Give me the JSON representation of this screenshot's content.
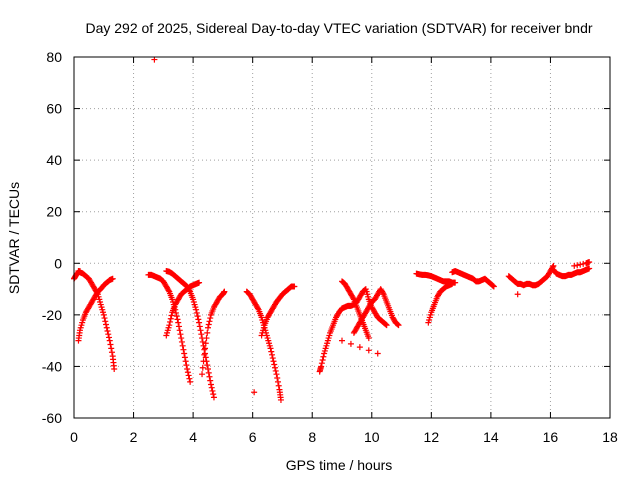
{
  "chart_data": {
    "type": "scatter",
    "title": "Day 292 of 2025, Sidereal Day-to-day VTEC variation (SDTVAR) for receiver bndr",
    "xlabel": "GPS time / hours",
    "ylabel": "SDTVAR / TECUs",
    "xlim": [
      0,
      18
    ],
    "ylim": [
      -60,
      80
    ],
    "xticks": [
      0,
      2,
      4,
      6,
      8,
      10,
      12,
      14,
      16,
      18
    ],
    "yticks": [
      -60,
      -40,
      -20,
      0,
      20,
      40,
      60,
      80
    ],
    "grid": true,
    "legend": "none",
    "marker": "+",
    "color": "#ff0000",
    "series": [
      {
        "name": "track-1",
        "x": [
          0.0,
          0.05,
          0.1,
          0.2
        ],
        "y": [
          -6,
          -5,
          -4,
          -3
        ]
      },
      {
        "name": "track-2",
        "x": [
          0.15,
          0.2,
          0.3,
          0.4,
          0.5,
          0.6,
          0.7,
          0.8,
          0.9,
          1.0,
          1.1,
          1.2,
          1.3,
          1.35
        ],
        "y": [
          -3,
          -3.5,
          -4,
          -5,
          -6,
          -8,
          -10,
          -12,
          -16,
          -20,
          -25,
          -30,
          -36,
          -41
        ]
      },
      {
        "name": "track-3",
        "x": [
          0.15,
          0.2,
          0.3,
          0.4,
          0.5,
          0.6,
          0.7,
          0.8,
          0.9,
          1.0,
          1.1,
          1.2,
          1.3
        ],
        "y": [
          -30,
          -26,
          -22,
          -19,
          -17,
          -15,
          -13,
          -11,
          -10,
          -8.5,
          -7.5,
          -6.5,
          -6
        ]
      },
      {
        "name": "isolated-1",
        "x": [
          2.7
        ],
        "y": [
          79
        ]
      },
      {
        "name": "track-4",
        "x": [
          2.5,
          2.6,
          2.7,
          2.8,
          2.9,
          3.0,
          3.1,
          3.2,
          3.3,
          3.4,
          3.5,
          3.6,
          3.7,
          3.8,
          3.9
        ],
        "y": [
          -4.5,
          -4.5,
          -5,
          -5.5,
          -6,
          -7,
          -9,
          -11,
          -14,
          -18,
          -23,
          -29,
          -35,
          -41,
          -46
        ]
      },
      {
        "name": "track-5",
        "x": [
          3.1,
          3.2,
          3.3,
          3.4,
          3.5,
          3.6,
          3.7,
          3.8,
          3.9,
          4.0,
          4.1,
          4.2,
          4.3,
          4.4,
          4.5,
          4.6,
          4.7
        ],
        "y": [
          -3,
          -3.3,
          -4,
          -5,
          -6,
          -7,
          -8,
          -9,
          -11,
          -14,
          -18,
          -23,
          -29,
          -35,
          -41,
          -47,
          -52
        ]
      },
      {
        "name": "track-6",
        "x": [
          3.1,
          3.2,
          3.3,
          3.4,
          3.5,
          3.6,
          3.7,
          3.8,
          3.9,
          4.0,
          4.1,
          4.2
        ],
        "y": [
          -28,
          -24,
          -19,
          -16,
          -14,
          -12,
          -11,
          -10,
          -9,
          -8.5,
          -8,
          -7.5
        ]
      },
      {
        "name": "track-7",
        "x": [
          4.3,
          4.4,
          4.5,
          4.6,
          4.7,
          4.8,
          4.9,
          5.0,
          5.05
        ],
        "y": [
          -43,
          -33,
          -25,
          -20,
          -17,
          -15,
          -13,
          -12,
          -11
        ]
      },
      {
        "name": "isolated-2",
        "x": [
          6.05
        ],
        "y": [
          -50
        ]
      },
      {
        "name": "track-8",
        "x": [
          5.8,
          5.9,
          6.0,
          6.1,
          6.2,
          6.3,
          6.4,
          6.5,
          6.6,
          6.7,
          6.8,
          6.9,
          6.95
        ],
        "y": [
          -11,
          -12,
          -14,
          -16,
          -18,
          -21,
          -25,
          -29,
          -33,
          -38,
          -43,
          -49,
          -53
        ]
      },
      {
        "name": "track-9",
        "x": [
          6.3,
          6.4,
          6.5,
          6.6,
          6.7,
          6.8,
          6.9,
          7.0,
          7.1,
          7.2,
          7.3,
          7.4
        ],
        "y": [
          -28,
          -24,
          -21,
          -19,
          -17,
          -15,
          -13.5,
          -12,
          -11,
          -10,
          -9,
          -9
        ]
      },
      {
        "name": "track-10",
        "x": [
          8.25,
          8.3,
          8.4,
          8.5,
          8.6,
          8.7,
          8.8,
          8.9,
          9.0,
          9.1,
          9.2,
          9.3,
          9.4,
          9.5,
          9.6,
          9.7,
          9.8,
          9.9,
          10.0,
          10.1,
          10.2,
          10.3,
          10.4,
          10.5
        ],
        "y": [
          -42,
          -40,
          -35,
          -31,
          -27,
          -24,
          -21,
          -19,
          -17.5,
          -17,
          -16.5,
          -16.5,
          -16,
          -15,
          -13,
          -11,
          -10,
          -14,
          -17,
          -19,
          -21,
          -22,
          -23,
          -24
        ]
      },
      {
        "name": "track-11",
        "x": [
          9.0,
          9.1,
          9.2,
          9.3,
          9.4,
          9.5,
          9.6,
          9.7,
          9.8,
          9.9
        ],
        "y": [
          -7,
          -8,
          -10,
          -12,
          -14,
          -17,
          -20,
          -23,
          -26,
          -29
        ]
      },
      {
        "name": "isolated-3",
        "x": [
          9.0,
          10.2
        ],
        "y": [
          -30,
          -35
        ]
      },
      {
        "name": "track-12",
        "x": [
          9.4,
          9.5,
          9.6,
          9.7,
          9.8,
          9.9,
          10.0,
          10.1,
          10.2,
          10.3,
          10.4,
          10.5,
          10.6,
          10.7,
          10.8,
          10.9
        ],
        "y": [
          -27,
          -25,
          -23,
          -21,
          -19,
          -17,
          -15,
          -14,
          -12,
          -10,
          -12,
          -15,
          -18,
          -21,
          -23,
          -24
        ]
      },
      {
        "name": "track-13",
        "x": [
          11.5,
          11.6,
          11.7,
          11.8,
          11.9,
          12.0,
          12.1,
          12.2,
          12.3,
          12.4,
          12.5,
          12.6,
          12.7,
          12.8
        ],
        "y": [
          -4,
          -4.3,
          -4.5,
          -4.5,
          -4.7,
          -5,
          -5.5,
          -6,
          -6.5,
          -7,
          -7,
          -7,
          -7.5,
          -7.5
        ]
      },
      {
        "name": "track-14",
        "x": [
          11.9,
          12.0,
          12.1,
          12.2,
          12.3,
          12.4,
          12.5,
          12.6,
          12.7
        ],
        "y": [
          -23,
          -19,
          -16,
          -13,
          -11,
          -10,
          -9,
          -8.5,
          -8
        ]
      },
      {
        "name": "track-15",
        "x": [
          12.7,
          12.8,
          12.9,
          13.0,
          13.1,
          13.2,
          13.3,
          13.4,
          13.5,
          13.6,
          13.7,
          13.8,
          13.9,
          14.0,
          14.1
        ],
        "y": [
          -3.5,
          -3,
          -3.5,
          -4,
          -4.5,
          -5,
          -5.5,
          -6,
          -7,
          -7,
          -6.5,
          -6,
          -7,
          -8,
          -9
        ]
      },
      {
        "name": "track-16",
        "x": [
          14.6,
          14.7,
          14.8,
          14.9,
          15.0,
          15.1,
          15.2,
          15.3,
          15.4,
          15.5,
          15.6,
          15.7,
          15.8,
          15.9,
          16.0,
          16.1
        ],
        "y": [
          -5,
          -6,
          -7,
          -8,
          -8,
          -8.5,
          -8,
          -8,
          -8.5,
          -8.5,
          -8,
          -7,
          -6,
          -5,
          -3,
          -1
        ]
      },
      {
        "name": "isolated-4",
        "x": [
          14.9
        ],
        "y": [
          -12
        ]
      },
      {
        "name": "track-17",
        "x": [
          16.1,
          16.2,
          16.3,
          16.4,
          16.5,
          16.6,
          16.7,
          16.8,
          16.9,
          17.0,
          17.1,
          17.2,
          17.3
        ],
        "y": [
          -2.5,
          -4,
          -4.5,
          -5,
          -5,
          -4.5,
          -4.5,
          -4,
          -3.5,
          -3.5,
          -3,
          -2.5,
          -2
        ]
      },
      {
        "name": "isolated-5",
        "x": [
          16.8,
          17.2,
          17.3
        ],
        "y": [
          -1,
          0,
          0.5
        ]
      }
    ]
  }
}
